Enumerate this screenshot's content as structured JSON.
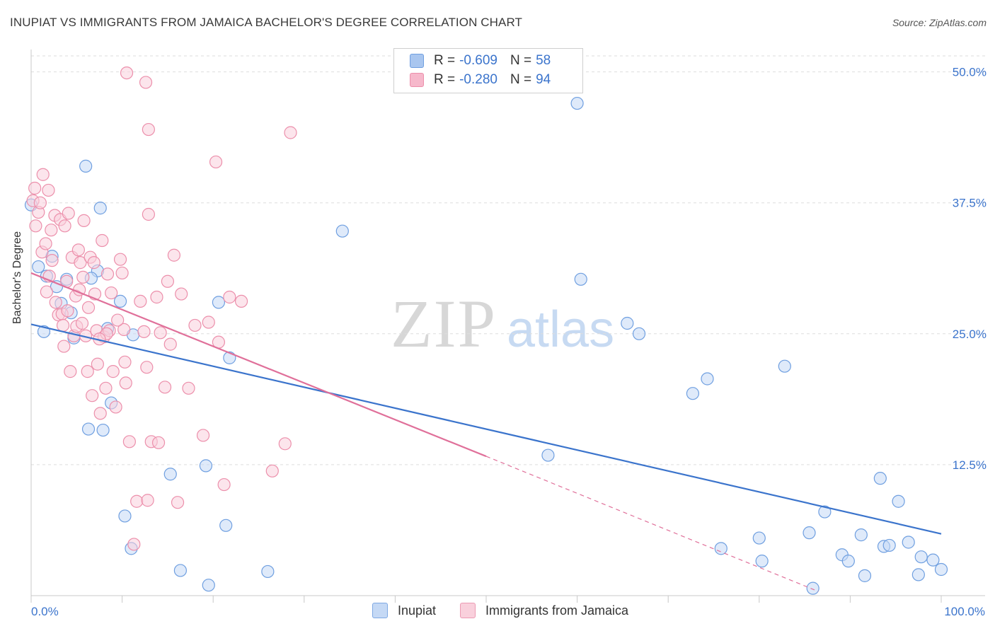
{
  "title": "INUPIAT VS IMMIGRANTS FROM JAMAICA BACHELOR'S DEGREE CORRELATION CHART",
  "source": "Source: ZipAtlas.com",
  "watermark": {
    "zip": "ZIP",
    "atlas": "atlas"
  },
  "legend": [
    {
      "r_label": "R =",
      "r_value": "-0.609",
      "n_label": "N =",
      "n_value": "58",
      "fill": "#a9c6ef",
      "stroke": "#6f9fe0"
    },
    {
      "r_label": "R =",
      "r_value": "-0.280",
      "n_label": "N =",
      "n_value": "94",
      "fill": "#f6b8cb",
      "stroke": "#ec8fab"
    }
  ],
  "bottom_legend": [
    {
      "label": "Inupiat",
      "fill": "#c5d9f5",
      "stroke": "#7ea8e3"
    },
    {
      "label": "Immigrants from Jamaica",
      "fill": "#f9d0dc",
      "stroke": "#ec9ab3"
    }
  ],
  "colors": {
    "blue": "#3b74cc",
    "pink": "#e0709a",
    "axis_text": "#3b74cc",
    "grid": "#dddddd"
  },
  "chart_data": {
    "type": "scatter",
    "title": "INUPIAT VS IMMIGRANTS FROM JAMAICA BACHELOR'S DEGREE CORRELATION CHART",
    "xlabel": "",
    "ylabel": "Bachelor's Degree",
    "xlim": [
      0,
      100
    ],
    "ylim": [
      0,
      52
    ],
    "x_tick_labels": [
      "0.0%",
      "100.0%"
    ],
    "y_ticks": [
      12.5,
      25.0,
      37.5,
      50.0
    ],
    "y_tick_labels": [
      "12.5%",
      "25.0%",
      "37.5%",
      "50.0%"
    ],
    "grid": true,
    "legend_position": "top-center",
    "series": [
      {
        "name": "Inupiat",
        "color": "#6f9fe0",
        "fill": "#c5d9f5",
        "trend": {
          "x": [
            0,
            100
          ],
          "y": [
            25.9,
            5.9
          ],
          "dashed_from": null
        },
        "points": [
          [
            0.0,
            37.3
          ],
          [
            0.8,
            31.4
          ],
          [
            1.4,
            25.2
          ],
          [
            1.7,
            30.5
          ],
          [
            2.3,
            32.4
          ],
          [
            2.8,
            29.5
          ],
          [
            3.3,
            27.9
          ],
          [
            3.9,
            30.2
          ],
          [
            4.4,
            27.0
          ],
          [
            4.7,
            24.6
          ],
          [
            6.0,
            41.0
          ],
          [
            7.3,
            31.0
          ],
          [
            6.3,
            15.9
          ],
          [
            6.6,
            30.3
          ],
          [
            7.6,
            37.0
          ],
          [
            7.9,
            15.8
          ],
          [
            8.4,
            25.5
          ],
          [
            8.8,
            18.4
          ],
          [
            9.8,
            28.1
          ],
          [
            10.3,
            7.6
          ],
          [
            11.0,
            4.5
          ],
          [
            11.2,
            24.9
          ],
          [
            15.3,
            11.6
          ],
          [
            16.4,
            2.4
          ],
          [
            19.2,
            12.4
          ],
          [
            19.5,
            1.0
          ],
          [
            20.6,
            28.0
          ],
          [
            21.4,
            6.7
          ],
          [
            21.8,
            22.7
          ],
          [
            26.0,
            2.3
          ],
          [
            34.2,
            34.8
          ],
          [
            56.8,
            13.4
          ],
          [
            60.0,
            47.0
          ],
          [
            60.4,
            30.2
          ],
          [
            65.5,
            26.0
          ],
          [
            66.8,
            25.0
          ],
          [
            72.7,
            19.3
          ],
          [
            74.3,
            20.7
          ],
          [
            75.8,
            4.5
          ],
          [
            80.0,
            5.5
          ],
          [
            80.3,
            3.3
          ],
          [
            82.8,
            21.9
          ],
          [
            85.5,
            6.0
          ],
          [
            85.9,
            0.7
          ],
          [
            87.2,
            8.0
          ],
          [
            89.1,
            3.9
          ],
          [
            89.8,
            3.3
          ],
          [
            91.2,
            5.8
          ],
          [
            91.6,
            1.9
          ],
          [
            93.3,
            11.2
          ],
          [
            93.7,
            4.7
          ],
          [
            94.3,
            4.8
          ],
          [
            95.3,
            9.0
          ],
          [
            96.4,
            5.1
          ],
          [
            97.5,
            2.0
          ],
          [
            97.8,
            3.7
          ],
          [
            99.1,
            3.4
          ],
          [
            100.0,
            2.5
          ]
        ]
      },
      {
        "name": "Immigrants from Jamaica",
        "color": "#ec8fab",
        "fill": "#f9d0dc",
        "trend": {
          "x": [
            0,
            50.0,
            86.5
          ],
          "y": [
            30.8,
            13.3,
            0.4
          ],
          "dashed_from": 50.0
        },
        "points": [
          [
            0.2,
            37.7
          ],
          [
            0.4,
            38.9
          ],
          [
            0.5,
            35.3
          ],
          [
            0.8,
            36.6
          ],
          [
            1.0,
            37.5
          ],
          [
            1.2,
            32.8
          ],
          [
            1.3,
            40.2
          ],
          [
            1.6,
            33.6
          ],
          [
            1.7,
            29.0
          ],
          [
            1.9,
            38.7
          ],
          [
            2.0,
            30.5
          ],
          [
            2.2,
            34.9
          ],
          [
            2.3,
            32.0
          ],
          [
            2.6,
            36.3
          ],
          [
            2.7,
            28.0
          ],
          [
            3.0,
            26.8
          ],
          [
            3.2,
            35.9
          ],
          [
            3.4,
            26.9
          ],
          [
            3.5,
            25.8
          ],
          [
            3.7,
            35.3
          ],
          [
            3.9,
            30.0
          ],
          [
            4.0,
            27.2
          ],
          [
            4.1,
            36.5
          ],
          [
            4.3,
            21.4
          ],
          [
            4.5,
            32.3
          ],
          [
            4.7,
            24.8
          ],
          [
            4.9,
            28.6
          ],
          [
            5.0,
            25.7
          ],
          [
            5.2,
            33.0
          ],
          [
            5.4,
            31.8
          ],
          [
            5.6,
            26.0
          ],
          [
            5.7,
            30.4
          ],
          [
            5.8,
            35.8
          ],
          [
            6.0,
            24.8
          ],
          [
            6.2,
            21.4
          ],
          [
            6.3,
            27.5
          ],
          [
            6.5,
            32.3
          ],
          [
            6.7,
            19.1
          ],
          [
            6.9,
            31.8
          ],
          [
            7.0,
            28.8
          ],
          [
            7.2,
            25.3
          ],
          [
            7.3,
            22.1
          ],
          [
            7.6,
            17.4
          ],
          [
            7.8,
            33.9
          ],
          [
            8.0,
            24.7
          ],
          [
            8.2,
            19.8
          ],
          [
            8.4,
            30.7
          ],
          [
            8.6,
            25.3
          ],
          [
            8.8,
            28.9
          ],
          [
            9.0,
            21.4
          ],
          [
            9.3,
            18.0
          ],
          [
            10.0,
            30.8
          ],
          [
            10.2,
            25.4
          ],
          [
            10.3,
            22.3
          ],
          [
            9.8,
            32.1
          ],
          [
            10.4,
            20.3
          ],
          [
            10.8,
            14.7
          ],
          [
            10.5,
            49.9
          ],
          [
            11.6,
            9.0
          ],
          [
            12.7,
            21.8
          ],
          [
            12.6,
            49.0
          ],
          [
            12.9,
            44.5
          ],
          [
            12.9,
            36.4
          ],
          [
            13.2,
            14.7
          ],
          [
            12.0,
            28.1
          ],
          [
            12.4,
            25.2
          ],
          [
            12.8,
            9.1
          ],
          [
            13.8,
            28.5
          ],
          [
            14.2,
            25.1
          ],
          [
            14.7,
            19.9
          ],
          [
            15.0,
            30.0
          ],
          [
            15.3,
            24.0
          ],
          [
            15.7,
            32.5
          ],
          [
            16.1,
            8.9
          ],
          [
            16.5,
            28.8
          ],
          [
            17.3,
            19.8
          ],
          [
            18.0,
            25.8
          ],
          [
            18.9,
            15.3
          ],
          [
            19.5,
            26.1
          ],
          [
            20.3,
            41.4
          ],
          [
            20.6,
            24.2
          ],
          [
            21.2,
            10.6
          ],
          [
            21.8,
            28.5
          ],
          [
            23.1,
            28.1
          ],
          [
            26.5,
            11.9
          ],
          [
            27.9,
            14.5
          ],
          [
            28.5,
            44.2
          ],
          [
            8.3,
            25.0
          ],
          [
            7.5,
            24.5
          ],
          [
            3.6,
            23.8
          ],
          [
            5.3,
            29.2
          ],
          [
            9.5,
            26.3
          ],
          [
            11.3,
            4.9
          ],
          [
            14.0,
            14.6
          ]
        ]
      }
    ]
  }
}
